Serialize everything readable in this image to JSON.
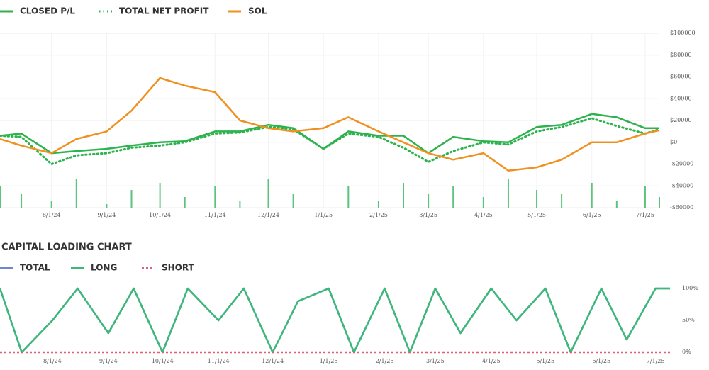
{
  "chart_data": [
    {
      "type": "line",
      "legend": "top-left",
      "grid": true,
      "x": [
        "7/3/24",
        "7/15/24",
        "8/1/24",
        "8/15/24",
        "9/1/24",
        "9/15/24",
        "10/1/24",
        "10/15/24",
        "11/1/24",
        "11/15/24",
        "12/1/24",
        "12/15/24",
        "1/1/25",
        "1/15/25",
        "2/1/25",
        "2/15/25",
        "3/1/25",
        "3/15/25",
        "4/1/25",
        "4/15/25",
        "5/1/25",
        "5/15/25",
        "6/1/25",
        "6/15/25",
        "7/1/25",
        "7/9/25"
      ],
      "xlim": [
        "7/3/24",
        "7/9/25"
      ],
      "xticks": [
        "8/1/24",
        "9/1/24",
        "10/1/24",
        "11/1/24",
        "12/1/24",
        "1/1/25",
        "2/1/25",
        "3/1/25",
        "4/1/25",
        "5/1/25",
        "6/1/25",
        "7/1/25"
      ],
      "ylim": [
        -60000,
        100000
      ],
      "yticks": [
        {
          "value": 100000,
          "label": "$100000"
        },
        {
          "value": 80000,
          "label": "$80000"
        },
        {
          "value": 60000,
          "label": "$60000"
        },
        {
          "value": 40000,
          "label": "$40000"
        },
        {
          "value": 20000,
          "label": "$20000"
        },
        {
          "value": 0,
          "label": "$0"
        },
        {
          "value": -20000,
          "label": "-$20000"
        },
        {
          "value": -40000,
          "label": "-$40000"
        },
        {
          "value": -60000,
          "label": "-$60000"
        }
      ],
      "y2lim": [
        0,
        100
      ],
      "series": [
        {
          "name": "CLOSED P/L",
          "color": "#2db24e",
          "style": "solid",
          "values": [
            6000,
            8000,
            -10000,
            -8000,
            -6000,
            -3000,
            0,
            1000,
            10000,
            10000,
            16000,
            13000,
            -6000,
            10000,
            6000,
            6000,
            -10000,
            5000,
            1000,
            0,
            14000,
            16000,
            26000,
            23000,
            13000,
            13000
          ]
        },
        {
          "name": "TOTAL NET PROFIT",
          "color": "#2db24e",
          "style": "dotted",
          "values": [
            6000,
            5000,
            -20000,
            -12000,
            -10000,
            -5000,
            -3000,
            0,
            8000,
            9000,
            14000,
            12000,
            -6000,
            8000,
            5000,
            -5000,
            -18000,
            -8000,
            0,
            -2000,
            10000,
            14000,
            22000,
            15000,
            8000,
            12000
          ]
        },
        {
          "name": "SOL",
          "color": "#f0901e",
          "style": "solid",
          "values": [
            3000,
            -3000,
            -10000,
            3000,
            10000,
            29000,
            59000,
            52000,
            46000,
            20000,
            13000,
            10000,
            13000,
            23000,
            10000,
            0,
            -10000,
            -16000,
            -10000,
            -26000,
            -23000,
            -16000,
            0,
            0,
            8000,
            11000
          ]
        },
        {
          "color": "#5cc27e",
          "style": "bars",
          "axis": "y2",
          "values": [
            60,
            40,
            20,
            80,
            10,
            50,
            70,
            30,
            60,
            20,
            80,
            40,
            0,
            60,
            20,
            70,
            40,
            60,
            30,
            80,
            50,
            40,
            70,
            20,
            60,
            30
          ]
        }
      ]
    },
    {
      "type": "line",
      "title": "CAPITAL LOADING CHART",
      "legend": "top-left",
      "grid": false,
      "x": [
        "7/3/24",
        "7/15/24",
        "8/1/24",
        "8/15/24",
        "9/1/24",
        "9/15/24",
        "10/1/24",
        "10/15/24",
        "11/1/24",
        "11/15/24",
        "12/1/24",
        "12/15/24",
        "1/1/25",
        "1/15/25",
        "2/1/25",
        "2/15/25",
        "3/1/25",
        "3/15/25",
        "4/1/25",
        "4/15/25",
        "5/1/25",
        "5/15/25",
        "6/1/25",
        "6/15/25",
        "7/1/25",
        "7/9/25"
      ],
      "xlim": [
        "7/3/24",
        "7/9/25"
      ],
      "xticks": [
        "8/1/24",
        "9/1/24",
        "10/1/24",
        "11/1/24",
        "12/1/24",
        "1/1/25",
        "2/1/25",
        "3/1/25",
        "4/1/25",
        "5/1/25",
        "6/1/25",
        "7/1/25"
      ],
      "ylim": [
        0,
        100
      ],
      "yticks": [
        {
          "value": 100,
          "label": "100%"
        },
        {
          "value": 50,
          "label": "50%"
        },
        {
          "value": 0,
          "label": "0%"
        }
      ],
      "series": [
        {
          "name": "TOTAL",
          "color": "#6f86d6",
          "style": "solid",
          "values": [
            100,
            0,
            50,
            100,
            30,
            100,
            0,
            100,
            50,
            100,
            0,
            80,
            100,
            0,
            100,
            0,
            100,
            30,
            100,
            50,
            100,
            0,
            100,
            20,
            100,
            100
          ]
        },
        {
          "name": "LONG",
          "color": "#3cb878",
          "style": "solid",
          "values": [
            100,
            0,
            50,
            100,
            30,
            100,
            0,
            100,
            50,
            100,
            0,
            80,
            100,
            0,
            100,
            0,
            100,
            30,
            100,
            50,
            100,
            0,
            100,
            20,
            100,
            100
          ]
        },
        {
          "name": "SHORT",
          "color": "#e0607a",
          "style": "dashed",
          "values": [
            0,
            0,
            0,
            0,
            0,
            0,
            0,
            0,
            0,
            0,
            0,
            0,
            0,
            0,
            0,
            0,
            0,
            0,
            0,
            0,
            0,
            0,
            0,
            0,
            0,
            0
          ]
        }
      ]
    }
  ]
}
